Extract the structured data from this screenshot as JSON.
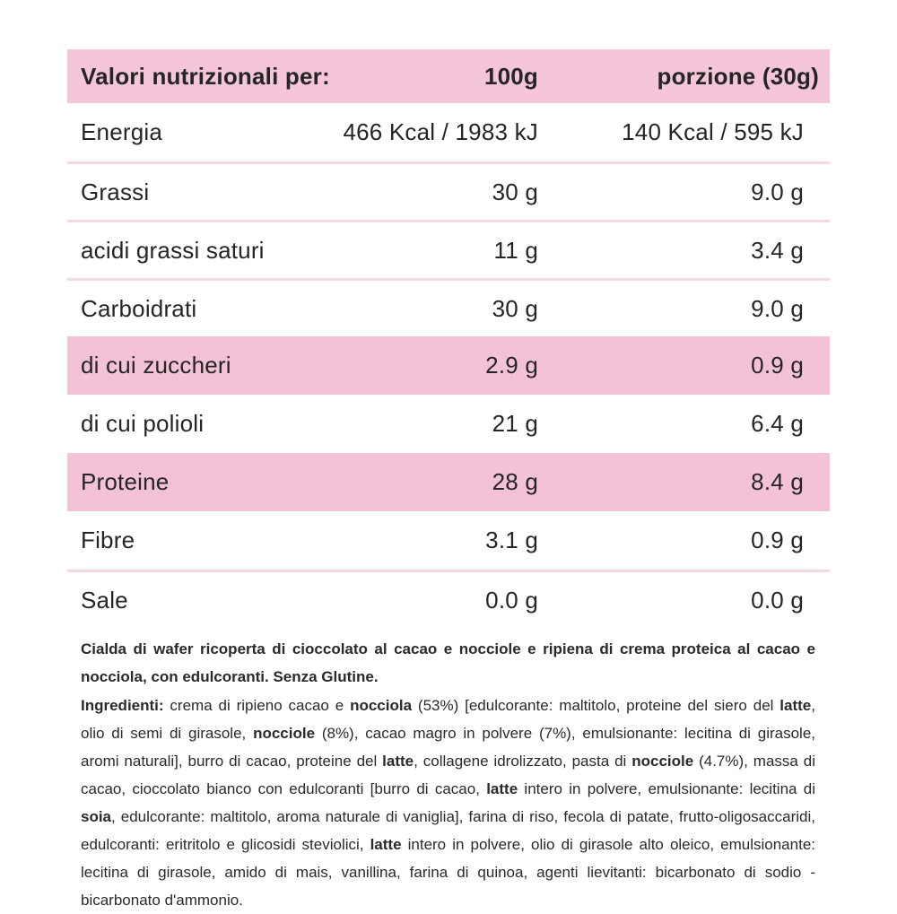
{
  "table": {
    "header": {
      "label": "Valori nutrizionali per:",
      "col_100g": "100g",
      "col_portion": "porzione (30g)"
    },
    "rows": [
      {
        "name": "Energia",
        "per_100g": "466 Kcal / 1983 kJ",
        "per_portion": "140 Kcal / 595 kJ"
      },
      {
        "name": "Grassi",
        "per_100g": "30 g",
        "per_portion": "9.0 g"
      },
      {
        "name": "acidi grassi saturi",
        "per_100g": "11 g",
        "per_portion": "3.4 g"
      },
      {
        "name": "Carboidrati",
        "per_100g": "30 g",
        "per_portion": "9.0 g"
      },
      {
        "name": "di cui zuccheri",
        "per_100g": "2.9 g",
        "per_portion": "0.9 g"
      },
      {
        "name": "di cui polioli",
        "per_100g": "21 g",
        "per_portion": "6.4 g"
      },
      {
        "name": "Proteine",
        "per_100g": "28 g",
        "per_portion": "8.4 g"
      },
      {
        "name": "Fibre",
        "per_100g": "3.1 g",
        "per_portion": "0.9 g"
      },
      {
        "name": "Sale",
        "per_100g": "0.0 g",
        "per_portion": "0.0 g"
      }
    ]
  },
  "colors": {
    "header_pink": "#f5c6da",
    "row_highlight_pink": "#f3c2d6",
    "divider_pink": "#f5d8e3",
    "text_dark": "#252427"
  },
  "description": "Cialda di wafer ricoperta di cioccolato al cacao e nocciole e ripiena di crema proteica al cacao e nocciola, con edulcoranti. Senza Glutine.",
  "ingredients": {
    "segments": [
      {
        "text": "Ingredienti:",
        "bold": true
      },
      {
        "text": " crema di ripieno cacao e ",
        "bold": false
      },
      {
        "text": "nocciola",
        "bold": true
      },
      {
        "text": " (53%) [edulcorante: maltitolo, proteine del siero del ",
        "bold": false
      },
      {
        "text": "latte",
        "bold": true
      },
      {
        "text": ", olio di semi di girasole, ",
        "bold": false
      },
      {
        "text": "nocciole",
        "bold": true
      },
      {
        "text": " (8%), cacao magro in polvere (7%), emulsionante: lecitina di girasole, aromi naturali], burro di cacao, proteine del ",
        "bold": false
      },
      {
        "text": "latte",
        "bold": true
      },
      {
        "text": ", collagene idrolizzato, pasta di ",
        "bold": false
      },
      {
        "text": "nocciole",
        "bold": true
      },
      {
        "text": " (4.7%), massa di cacao, cioccolato bianco con edulcoranti [burro di cacao, ",
        "bold": false
      },
      {
        "text": "latte",
        "bold": true
      },
      {
        "text": " intero in polvere, emulsionante: lecitina di ",
        "bold": false
      },
      {
        "text": "soia",
        "bold": true
      },
      {
        "text": ", edulcorante: maltitolo, aroma naturale di vaniglia], farina di riso, fecola di patate, frutto-oligosaccaridi, edulcoranti: eritritolo e glicosidi steviolici, ",
        "bold": false
      },
      {
        "text": "latte",
        "bold": true
      },
      {
        "text": " intero in polvere, olio di girasole alto oleico, emulsionante: lecitina di girasole, amido di mais, vanillina, farina di quinoa, agenti lievitanti: bicarbonato di sodio - bicarbonato d'ammonio.",
        "bold": false
      }
    ]
  }
}
